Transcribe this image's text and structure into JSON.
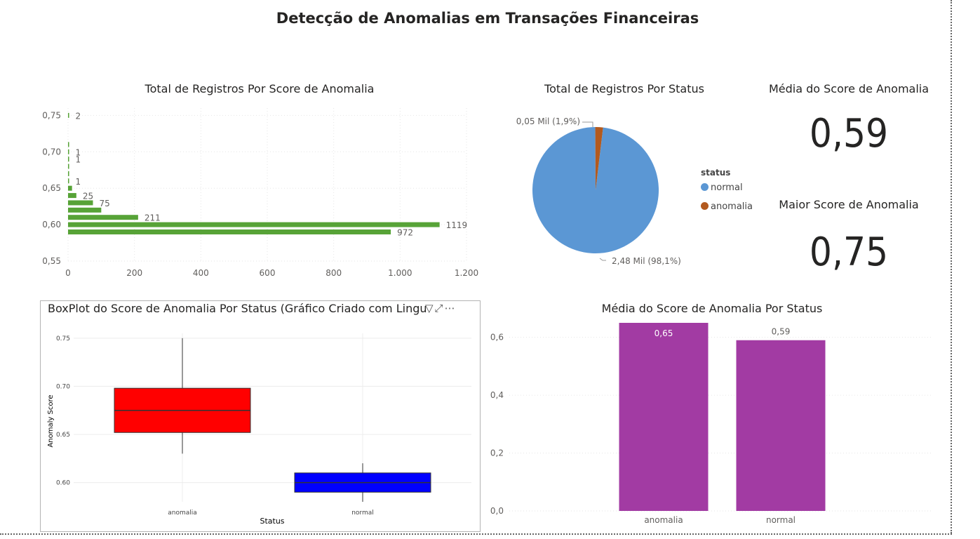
{
  "page": {
    "title": "Detecção de Anomalias em Transações Financeiras"
  },
  "charts": {
    "score_bar_title": "Total de Registros Por Score de Anomalia",
    "status_pie_title": "Total de Registros Por Status",
    "avg_card_title": "Média do Score de Anomalia",
    "avg_card_value": "0,59",
    "max_card_title": "Maior Score de Anomalia",
    "max_card_value": "0,75",
    "boxplot_title": "BoxPlot do Score de Anomalia Por Status (Gráfico Criado com Lingu",
    "avg_bar_title": "Média do Score de Anomalia Por Status",
    "legend_title": "status"
  },
  "colors": {
    "green": "#57a337",
    "pie_normal": "#5b97d4",
    "pie_anomalia": "#b35a1e",
    "purple": "#a23ba3",
    "box_red": "#ff0000",
    "box_blue": "#0000ff"
  },
  "chart_data": [
    {
      "type": "bar",
      "orientation": "horizontal",
      "title": "Total de Registros Por Score de Anomalia",
      "y_ticks": [
        "0,75",
        "0,70",
        "0,65",
        "0,60",
        "0,55"
      ],
      "ylim": [
        0.55,
        0.76
      ],
      "x_ticks": [
        "0",
        "200",
        "400",
        "600",
        "800",
        "1.000",
        "1.200"
      ],
      "xlim": [
        0,
        1200
      ],
      "points": [
        {
          "y": 0.75,
          "value": 2,
          "label": "2"
        },
        {
          "y": 0.71,
          "value": 1,
          "label": ""
        },
        {
          "y": 0.7,
          "value": 1,
          "label": "1"
        },
        {
          "y": 0.69,
          "value": 1,
          "label": "1"
        },
        {
          "y": 0.68,
          "value": 1,
          "label": ""
        },
        {
          "y": 0.67,
          "value": 1,
          "label": ""
        },
        {
          "y": 0.66,
          "value": 1,
          "label": "1"
        },
        {
          "y": 0.65,
          "value": 12,
          "label": ""
        },
        {
          "y": 0.64,
          "value": 25,
          "label": "25"
        },
        {
          "y": 0.63,
          "value": 75,
          "label": "75"
        },
        {
          "y": 0.62,
          "value": 100,
          "label": ""
        },
        {
          "y": 0.61,
          "value": 211,
          "label": "211"
        },
        {
          "y": 0.6,
          "value": 1119,
          "label": "1119"
        },
        {
          "y": 0.59,
          "value": 972,
          "label": "972"
        }
      ],
      "grid": true
    },
    {
      "type": "pie",
      "title": "Total de Registros Por Status",
      "slices": [
        {
          "name": "normal",
          "value": 2.48,
          "label": "2,48 Mil (98,1%)"
        },
        {
          "name": "anomalia",
          "value": 0.05,
          "label": "0,05 Mil (1,9%)"
        }
      ],
      "legend": "right"
    },
    {
      "type": "boxplot",
      "title": "BoxPlot do Score de Anomalia Por Status (Gráfico Criado com Lingu",
      "xlabel": "Status",
      "ylabel": "Anomaly Score",
      "y_ticks": [
        "0.75",
        "0.70",
        "0.65",
        "0.60"
      ],
      "ylim": [
        0.58,
        0.755
      ],
      "boxes": [
        {
          "category": "anomalia",
          "min": 0.63,
          "q1": 0.652,
          "median": 0.675,
          "q3": 0.698,
          "max": 0.75
        },
        {
          "category": "normal",
          "min": 0.58,
          "q1": 0.59,
          "median": 0.6,
          "q3": 0.61,
          "max": 0.62
        }
      ],
      "grid": true
    },
    {
      "type": "bar",
      "title": "Média do Score de Anomalia Por Status",
      "categories": [
        "anomalia",
        "normal"
      ],
      "values": [
        0.65,
        0.59
      ],
      "value_labels": [
        "0,65",
        "0,59"
      ],
      "y_ticks": [
        "0,6",
        "0,4",
        "0,2",
        "0,0"
      ],
      "ylim": [
        0,
        0.65
      ],
      "grid": true
    }
  ]
}
